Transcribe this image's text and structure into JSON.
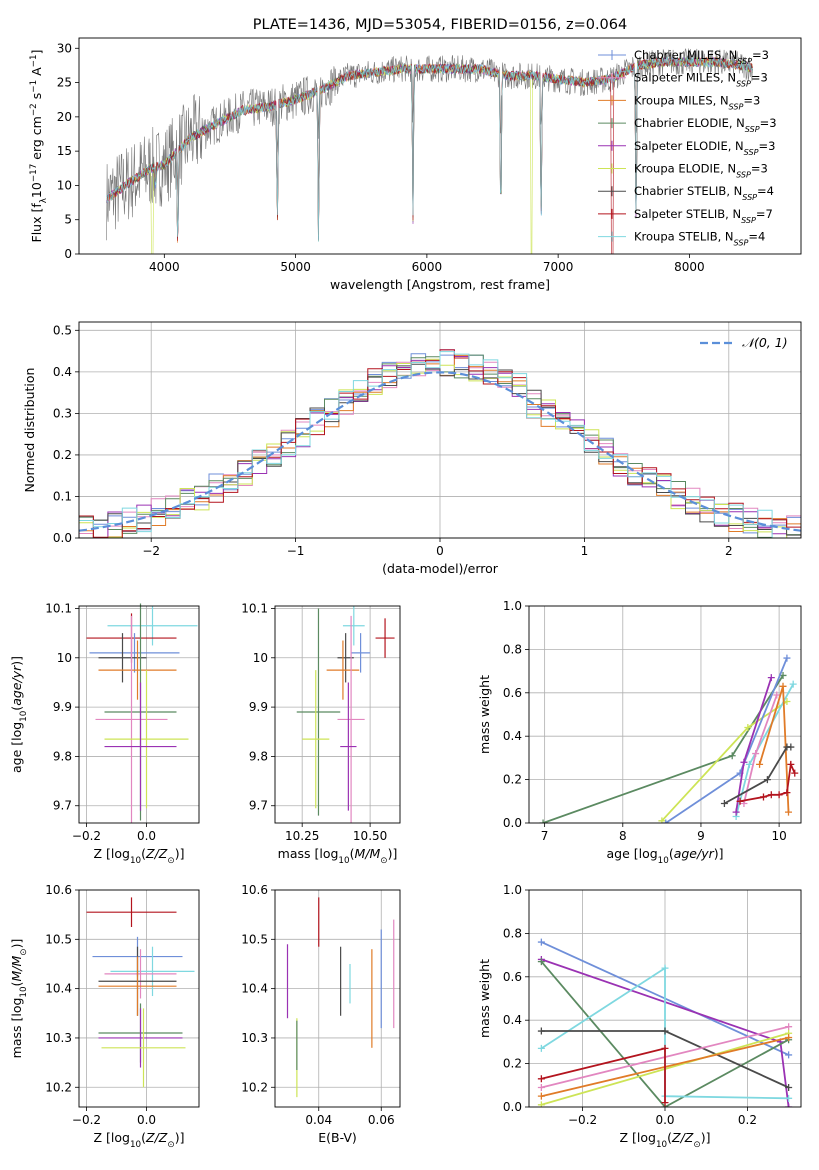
{
  "colors": {
    "Chabrier MILES": "#6f8fd9",
    "Salpeter MILES": "#e287c0",
    "Kroupa MILES": "#e07b28",
    "Chabrier ELODIE": "#5b8a61",
    "Salpeter ELODIE": "#9a32b3",
    "Kroupa ELODIE": "#cde456",
    "Chabrier STELIB": "#4a4a4a",
    "Salpeter STELIB": "#b3141e",
    "Kroupa STELIB": "#7fd8e0",
    "normal": "#5b8fd9",
    "grid": "#b0b0b0"
  },
  "chart_data": [
    {
      "id": "spectrum",
      "type": "line",
      "title": "PLATE=1436, MJD=53054, FIBERID=0156, z=0.064",
      "xlabel": "wavelength [Angstrom, rest frame]",
      "ylabel": "Flux [f_λ10^-17 erg cm^-2 s^-1 A^-1]",
      "xlim": [
        3350,
        8850
      ],
      "ylim": [
        0,
        31.5
      ],
      "xticks": [
        4000,
        5000,
        6000,
        7000,
        8000
      ],
      "yticks": [
        0,
        5,
        10,
        15,
        20,
        25,
        30
      ],
      "grid": false,
      "legend_position": "top-right",
      "legend": [
        {
          "label": "Chabrier MILES, N",
          "sub": "SSP",
          "val": "=3"
        },
        {
          "label": "Salpeter MILES, N",
          "sub": "SSP",
          "val": "=3"
        },
        {
          "label": "Kroupa MILES, N",
          "sub": "SSP",
          "val": "=3"
        },
        {
          "label": "Chabrier ELODIE, N",
          "sub": "SSP",
          "val": "=3"
        },
        {
          "label": "Salpeter ELODIE, N",
          "sub": "SSP",
          "val": "=3"
        },
        {
          "label": "Kroupa ELODIE, N",
          "sub": "SSP",
          "val": "=3"
        },
        {
          "label": "Chabrier STELIB, N",
          "sub": "SSP",
          "val": "=4"
        },
        {
          "label": "Salpeter STELIB, N",
          "sub": "SSP",
          "val": "=7"
        },
        {
          "label": "Kroupa STELIB, N",
          "sub": "SSP",
          "val": "=4"
        }
      ],
      "continuum": [
        [
          3560,
          8
        ],
        [
          3700,
          10
        ],
        [
          3900,
          12.5
        ],
        [
          4000,
          13
        ],
        [
          4200,
          17
        ],
        [
          4400,
          19
        ],
        [
          4600,
          21
        ],
        [
          4800,
          21.5
        ],
        [
          5000,
          22.5
        ],
        [
          5200,
          24
        ],
        [
          5400,
          26
        ],
        [
          5600,
          26.5
        ],
        [
          5800,
          27
        ],
        [
          6000,
          27
        ],
        [
          6200,
          27
        ],
        [
          6400,
          27
        ],
        [
          6600,
          26
        ],
        [
          6800,
          26
        ],
        [
          7000,
          25.5
        ],
        [
          7200,
          25
        ],
        [
          7400,
          25.5
        ],
        [
          7600,
          27.5
        ],
        [
          7800,
          28
        ],
        [
          8000,
          28
        ],
        [
          8200,
          28
        ],
        [
          8400,
          27.5
        ],
        [
          8500,
          27
        ]
      ],
      "dips": [
        [
          3934,
          3
        ],
        [
          4102,
          16
        ],
        [
          4861,
          18
        ],
        [
          5175,
          24
        ],
        [
          5894,
          22
        ],
        [
          6563,
          24
        ],
        [
          6870,
          24.5
        ],
        [
          7594,
          27
        ]
      ]
    },
    {
      "id": "residuals",
      "type": "histogram",
      "xlabel": "(data-model)/error",
      "ylabel": "Normed distribution",
      "xlim": [
        -2.5,
        2.5
      ],
      "ylim": [
        0,
        0.52
      ],
      "xticks": [
        -2,
        -1,
        0,
        1,
        2
      ],
      "xtick_labels": [
        "−2",
        "−1",
        "0",
        "1",
        "2"
      ],
      "yticks": [
        0,
        0.1,
        0.2,
        0.3,
        0.4,
        0.5
      ],
      "grid": true,
      "legend_position": "top-right",
      "legend": [
        {
          "label": "𝒩(0, 1)"
        }
      ],
      "bin_width": 0.1
    },
    {
      "id": "age_Z",
      "type": "errorbar",
      "xlabel": "Z [log10(Z/Z⊙)]",
      "ylabel": "age  [log10(age/yr)]",
      "xlim": [
        -0.225,
        0.175
      ],
      "ylim": [
        9.665,
        10.105
      ],
      "xticks": [
        -0.2,
        0.0
      ],
      "xtick_labels": [
        "−0.2",
        "0.0"
      ],
      "yticks": [
        9.7,
        9.8,
        9.9,
        10.0,
        10.1
      ],
      "grid": true,
      "points": [
        {
          "s": "Kroupa STELIB",
          "x": 0.02,
          "xe": 0.15,
          "y": 10.065,
          "ye": 0.04
        },
        {
          "s": "Salpeter STELIB",
          "x": -0.05,
          "xe": 0.15,
          "y": 10.04,
          "ye": 0.05
        },
        {
          "s": "Chabrier MILES",
          "x": -0.04,
          "xe": 0.15,
          "y": 10.01,
          "ye": 0.04
        },
        {
          "s": "Chabrier STELIB",
          "x": -0.08,
          "xe": 0.08,
          "y": 10.0,
          "ye": 0.05
        },
        {
          "s": "Kroupa MILES",
          "x": -0.03,
          "xe": 0.13,
          "y": 9.975,
          "ye": 0.06
        },
        {
          "s": "Chabrier ELODIE",
          "x": -0.02,
          "xe": 0.12,
          "y": 9.89,
          "ye": 0.22
        },
        {
          "s": "Salpeter MILES",
          "x": -0.05,
          "xe": 0.12,
          "y": 9.875,
          "ye": 0.21
        },
        {
          "s": "Kroupa ELODIE",
          "x": 0.0,
          "xe": 0.14,
          "y": 9.835,
          "ye": 0.14
        },
        {
          "s": "Salpeter ELODIE",
          "x": -0.02,
          "xe": 0.12,
          "y": 9.82,
          "ye": 0.13
        }
      ]
    },
    {
      "id": "age_mass",
      "type": "errorbar",
      "xlabel": "mass [log10(M/M⊙)]",
      "ylabel": "",
      "xlim": [
        10.15,
        10.61
      ],
      "ylim": [
        9.665,
        10.105
      ],
      "xticks": [
        10.25,
        10.5
      ],
      "xtick_labels": [
        "10.25",
        "10.50"
      ],
      "yticks": [
        9.7,
        9.8,
        9.9,
        10.0,
        10.1
      ],
      "grid": true,
      "points": [
        {
          "s": "Kroupa STELIB",
          "x": 10.44,
          "xe": 0.04,
          "y": 10.065,
          "ye": 0.04
        },
        {
          "s": "Salpeter STELIB",
          "x": 10.555,
          "xe": 0.035,
          "y": 10.04,
          "ye": 0.04
        },
        {
          "s": "Chabrier MILES",
          "x": 10.465,
          "xe": 0.035,
          "y": 10.01,
          "ye": 0.04
        },
        {
          "s": "Chabrier STELIB",
          "x": 10.41,
          "xe": 0.03,
          "y": 10.0,
          "ye": 0.05
        },
        {
          "s": "Kroupa MILES",
          "x": 10.4,
          "xe": 0.06,
          "y": 9.975,
          "ye": 0.06
        },
        {
          "s": "Chabrier ELODIE",
          "x": 10.31,
          "xe": 0.08,
          "y": 9.89,
          "ye": 0.21
        },
        {
          "s": "Salpeter MILES",
          "x": 10.43,
          "xe": 0.05,
          "y": 9.875,
          "ye": 0.21
        },
        {
          "s": "Kroupa ELODIE",
          "x": 10.3,
          "xe": 0.05,
          "y": 9.835,
          "ye": 0.14
        },
        {
          "s": "Salpeter ELODIE",
          "x": 10.42,
          "xe": 0.03,
          "y": 9.82,
          "ye": 0.13
        }
      ]
    },
    {
      "id": "weight_age",
      "type": "line",
      "xlabel": "age  [log10(age/yr)]",
      "ylabel": "mass weight",
      "xlim": [
        6.8,
        10.28
      ],
      "ylim": [
        0,
        1
      ],
      "xticks": [
        7,
        8,
        9,
        10
      ],
      "yticks": [
        0,
        0.2,
        0.4,
        0.6,
        0.8,
        1.0
      ],
      "grid": true,
      "series": [
        {
          "s": "Chabrier ELODIE",
          "pts": [
            [
              6.98,
              0.0
            ],
            [
              9.4,
              0.31
            ],
            [
              10.05,
              0.68
            ]
          ]
        },
        {
          "s": "Kroupa ELODIE",
          "pts": [
            [
              8.5,
              0.01
            ],
            [
              9.6,
              0.44
            ],
            [
              10.1,
              0.56
            ]
          ]
        },
        {
          "s": "Chabrier MILES",
          "pts": [
            [
              8.55,
              0.0
            ],
            [
              9.5,
              0.23
            ],
            [
              10.1,
              0.76
            ]
          ]
        },
        {
          "s": "Kroupa STELIB",
          "pts": [
            [
              9.45,
              0.03
            ],
            [
              9.62,
              0.27
            ],
            [
              10.18,
              0.64
            ]
          ]
        },
        {
          "s": "Salpeter ELODIE",
          "pts": [
            [
              9.45,
              0.05
            ],
            [
              9.55,
              0.28
            ],
            [
              9.9,
              0.67
            ]
          ]
        },
        {
          "s": "Salpeter MILES",
          "pts": [
            [
              9.55,
              0.09
            ],
            [
              9.7,
              0.32
            ],
            [
              9.97,
              0.59
            ]
          ]
        },
        {
          "s": "Kroupa MILES",
          "pts": [
            [
              9.75,
              0.27
            ],
            [
              10.05,
              0.63
            ],
            [
              10.12,
              0.05
            ]
          ]
        },
        {
          "s": "Chabrier STELIB",
          "pts": [
            [
              9.3,
              0.09
            ],
            [
              9.85,
              0.2
            ],
            [
              10.1,
              0.35
            ],
            [
              10.15,
              0.35
            ]
          ]
        },
        {
          "s": "Salpeter STELIB",
          "pts": [
            [
              9.5,
              0.1
            ],
            [
              9.8,
              0.12
            ],
            [
              9.9,
              0.13
            ],
            [
              10.0,
              0.13
            ],
            [
              10.1,
              0.14
            ],
            [
              10.15,
              0.27
            ],
            [
              10.2,
              0.23
            ]
          ]
        }
      ]
    },
    {
      "id": "mass_Z",
      "type": "errorbar",
      "xlabel": "Z [log10(Z/Z⊙)]",
      "ylabel": "mass [log10(M/M⊙)]",
      "xlim": [
        -0.225,
        0.175
      ],
      "ylim": [
        10.16,
        10.6
      ],
      "xticks": [
        -0.2,
        0.0
      ],
      "xtick_labels": [
        "−0.2",
        "0.0"
      ],
      "yticks": [
        10.2,
        10.3,
        10.4,
        10.5,
        10.6
      ],
      "grid": true,
      "points": [
        {
          "s": "Salpeter STELIB",
          "x": -0.05,
          "xe": 0.15,
          "y": 10.555,
          "ye": 0.03
        },
        {
          "s": "Chabrier MILES",
          "x": -0.03,
          "xe": 0.15,
          "y": 10.465,
          "ye": 0.04
        },
        {
          "s": "Kroupa STELIB",
          "x": 0.02,
          "xe": 0.14,
          "y": 10.435,
          "ye": 0.05
        },
        {
          "s": "Salpeter MILES",
          "x": -0.02,
          "xe": 0.12,
          "y": 10.43,
          "ye": 0.05
        },
        {
          "s": "Chabrier STELIB",
          "x": -0.03,
          "xe": 0.13,
          "y": 10.415,
          "ye": 0.07
        },
        {
          "s": "Kroupa MILES",
          "x": -0.03,
          "xe": 0.13,
          "y": 10.405,
          "ye": 0.06
        },
        {
          "s": "Chabrier ELODIE",
          "x": -0.02,
          "xe": 0.14,
          "y": 10.31,
          "ye": 0.06
        },
        {
          "s": "Salpeter ELODIE",
          "x": -0.02,
          "xe": 0.14,
          "y": 10.3,
          "ye": 0.06
        },
        {
          "s": "Kroupa ELODIE",
          "x": -0.01,
          "xe": 0.14,
          "y": 10.28,
          "ye": 0.08
        }
      ]
    },
    {
      "id": "mass_ebv",
      "type": "errorbar",
      "xlabel": "E(B-V)",
      "ylabel": "",
      "xlim": [
        0.026,
        0.066
      ],
      "ylim": [
        10.16,
        10.6
      ],
      "xticks": [
        0.04,
        0.06
      ],
      "xtick_labels": [
        "0.04",
        "0.06"
      ],
      "yticks": [
        10.2,
        10.3,
        10.4,
        10.5,
        10.6
      ],
      "grid": true,
      "points": [
        {
          "s": "Salpeter ELODIE",
          "x": 0.03,
          "xe": 0,
          "y": 10.415,
          "ye": 0.075
        },
        {
          "s": "Kroupa ELODIE",
          "x": 0.033,
          "xe": 0,
          "y": 10.26,
          "ye": 0.08
        },
        {
          "s": "Chabrier ELODIE",
          "x": 0.033,
          "xe": 0,
          "y": 10.285,
          "ye": 0.05
        },
        {
          "s": "Salpeter STELIB",
          "x": 0.04,
          "xe": 0,
          "y": 10.535,
          "ye": 0.05
        },
        {
          "s": "Chabrier STELIB",
          "x": 0.047,
          "xe": 0,
          "y": 10.415,
          "ye": 0.07
        },
        {
          "s": "Kroupa STELIB",
          "x": 0.05,
          "xe": 0,
          "y": 10.41,
          "ye": 0.04
        },
        {
          "s": "Kroupa MILES",
          "x": 0.057,
          "xe": 0,
          "y": 10.38,
          "ye": 0.1
        },
        {
          "s": "Chabrier MILES",
          "x": 0.06,
          "xe": 0,
          "y": 10.42,
          "ye": 0.1
        },
        {
          "s": "Salpeter MILES",
          "x": 0.064,
          "xe": 0,
          "y": 10.43,
          "ye": 0.11
        }
      ]
    },
    {
      "id": "weight_Z",
      "type": "line",
      "xlabel": "Z [log10(Z/Z⊙)]",
      "ylabel": "mass weight",
      "xlim": [
        -0.33,
        0.33
      ],
      "ylim": [
        0,
        1
      ],
      "xticks": [
        -0.2,
        0.0,
        0.2
      ],
      "xtick_labels": [
        "−0.2",
        "0.0",
        "0.2"
      ],
      "yticks": [
        0,
        0.2,
        0.4,
        0.6,
        0.8,
        1.0
      ],
      "grid": true,
      "series": [
        {
          "s": "Chabrier MILES",
          "pts": [
            [
              -0.3,
              0.76
            ],
            [
              0.3,
              0.24
            ]
          ]
        },
        {
          "s": "Salpeter ELODIE",
          "pts": [
            [
              -0.3,
              0.68
            ],
            [
              0.28,
              0.3
            ],
            [
              0.3,
              0.0
            ]
          ]
        },
        {
          "s": "Chabrier ELODIE",
          "pts": [
            [
              -0.3,
              0.67
            ],
            [
              0.0,
              0.0
            ],
            [
              0.3,
              0.31
            ]
          ]
        },
        {
          "s": "Kroupa STELIB",
          "pts": [
            [
              -0.3,
              0.27
            ],
            [
              0.0,
              0.64
            ],
            [
              0.0,
              0.05
            ],
            [
              0.3,
              0.04
            ]
          ]
        },
        {
          "s": "Chabrier STELIB",
          "pts": [
            [
              -0.3,
              0.35
            ],
            [
              0.0,
              0.35
            ],
            [
              0.3,
              0.09
            ]
          ]
        },
        {
          "s": "Salpeter MILES",
          "pts": [
            [
              -0.3,
              0.09
            ],
            [
              0.3,
              0.37
            ]
          ]
        },
        {
          "s": "Kroupa ELODIE",
          "pts": [
            [
              -0.3,
              0.01
            ],
            [
              0.3,
              0.34
            ]
          ]
        },
        {
          "s": "Kroupa MILES",
          "pts": [
            [
              -0.3,
              0.05
            ],
            [
              0.3,
              0.32
            ]
          ]
        },
        {
          "s": "Salpeter STELIB",
          "pts": [
            [
              -0.3,
              0.13
            ],
            [
              0.0,
              0.27
            ],
            [
              0.0,
              0.02
            ]
          ]
        }
      ]
    }
  ]
}
